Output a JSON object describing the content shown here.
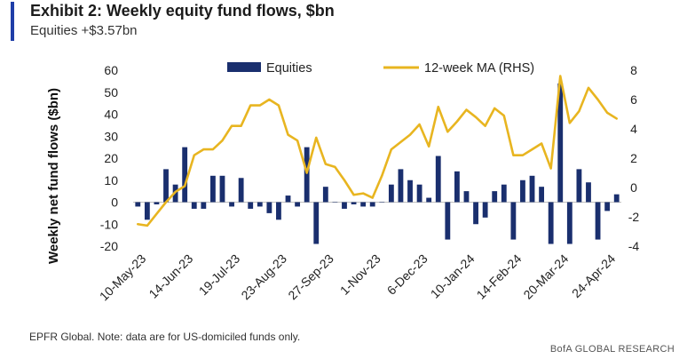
{
  "header": {
    "title": "Exhibit 2: Weekly equity fund flows, $bn",
    "subtitle": "Equities +$3.57bn"
  },
  "footer": {
    "source": "EPFR Global. Note: data are for US-domiciled funds only.",
    "credit": "BofA GLOBAL RESEARCH"
  },
  "colors": {
    "bars": "#1a2f6e",
    "line": "#e8b520",
    "accent": "#1f3ea8"
  },
  "chart_data": {
    "type": "bar",
    "ylabel": "Weekly net fund flows ($bn)",
    "ylim": [
      -20,
      60
    ],
    "y_ticks": [
      -20,
      -10,
      0,
      10,
      20,
      30,
      40,
      50,
      60
    ],
    "y2lim": [
      -4,
      8
    ],
    "y2_ticks": [
      -4,
      -2,
      0,
      2,
      4,
      6,
      8
    ],
    "legend_position": "top",
    "x_tick_labels": [
      "10-May-23",
      "14-Jun-23",
      "19-Jul-23",
      "23-Aug-23",
      "27-Sep-23",
      "1-Nov-23",
      "6-Dec-23",
      "10-Jan-24",
      "14-Feb-24",
      "20-Mar-24",
      "24-Apr-24"
    ],
    "x_tick_week_index": [
      0,
      5,
      10,
      15,
      20,
      25,
      30,
      35,
      40,
      45,
      50
    ],
    "series": [
      {
        "name": "Equities",
        "kind": "bar",
        "axis": "left",
        "values": [
          -2,
          -8,
          -1,
          15,
          8,
          25,
          -3,
          -3,
          12,
          12,
          -2,
          11,
          -3,
          -2,
          -5,
          -8,
          3,
          -2,
          25,
          -19,
          7,
          0,
          -3,
          -1,
          -2,
          -2,
          0,
          8,
          15,
          10,
          8,
          2,
          21,
          -17,
          14,
          5,
          -10,
          -7,
          5,
          8,
          -17,
          10,
          12,
          7,
          -19,
          54,
          -19,
          15,
          9,
          -17,
          -4,
          3.57
        ]
      },
      {
        "name": "12-week MA (RHS)",
        "kind": "line",
        "axis": "right",
        "values": [
          -2.5,
          -2.6,
          -1.8,
          -1.0,
          -0.3,
          0.1,
          2.2,
          2.6,
          2.6,
          3.2,
          4.2,
          4.2,
          5.6,
          5.6,
          6.0,
          5.6,
          3.6,
          3.2,
          1.0,
          3.4,
          1.6,
          1.4,
          0.5,
          -0.5,
          -0.4,
          -0.7,
          0.8,
          2.6,
          3.1,
          3.6,
          4.3,
          2.8,
          5.5,
          3.8,
          4.5,
          5.3,
          4.8,
          4.2,
          5.4,
          4.9,
          2.2,
          2.2,
          2.6,
          3.0,
          1.3,
          7.6,
          4.4,
          5.2,
          6.8,
          6.0,
          5.1,
          4.7
        ]
      }
    ]
  }
}
